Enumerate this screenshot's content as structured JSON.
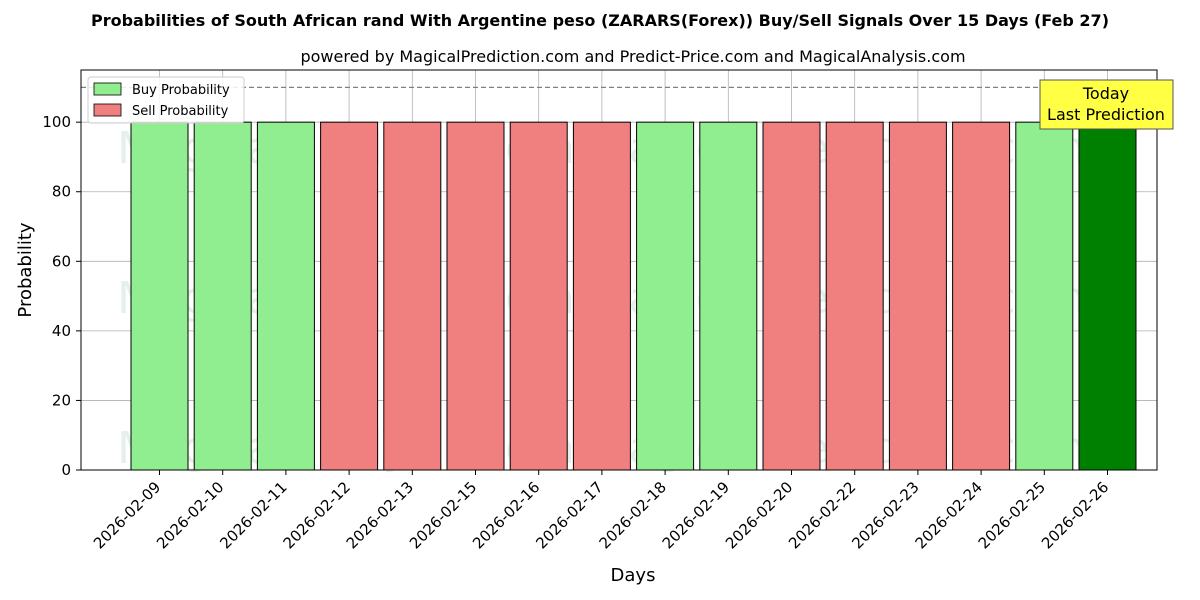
{
  "chart_data": {
    "type": "bar",
    "title": "Probabilities of South African rand With Argentine peso (ZARARS(Forex)) Buy/Sell Signals Over 15 Days (Feb 27)",
    "subtitle": "powered by MagicalPrediction.com and Predict-Price.com and MagicalAnalysis.com",
    "xlabel": "Days",
    "ylabel": "Probability",
    "ylim": [
      0,
      115
    ],
    "yticks": [
      0,
      20,
      40,
      60,
      80,
      100
    ],
    "reference_line": 110,
    "grid": true,
    "legend_position": "top-left",
    "categories": [
      "2026-02-09",
      "2026-02-10",
      "2026-02-11",
      "2026-02-12",
      "2026-02-13",
      "2026-02-15",
      "2026-02-16",
      "2026-02-17",
      "2026-02-18",
      "2026-02-19",
      "2026-02-20",
      "2026-02-22",
      "2026-02-23",
      "2026-02-24",
      "2026-02-25",
      "2026-02-26"
    ],
    "signals": [
      "buy",
      "buy",
      "buy",
      "sell",
      "sell",
      "sell",
      "sell",
      "sell",
      "buy",
      "buy",
      "sell",
      "sell",
      "sell",
      "sell",
      "buy",
      "buy"
    ],
    "values": [
      100,
      100,
      100,
      100,
      100,
      100,
      100,
      100,
      100,
      100,
      100,
      100,
      100,
      100,
      100,
      100
    ],
    "series": [
      {
        "name": "Buy Probability",
        "color": "#90ee90"
      },
      {
        "name": "Sell Probability",
        "color": "#f08080"
      }
    ],
    "today_color": "#008000",
    "annotation": {
      "lines": [
        "Today",
        "Last Prediction"
      ],
      "color": "#ffff44"
    },
    "watermarks": [
      "MagicalAnalysis.com",
      "MagicalPrediction.com"
    ]
  }
}
